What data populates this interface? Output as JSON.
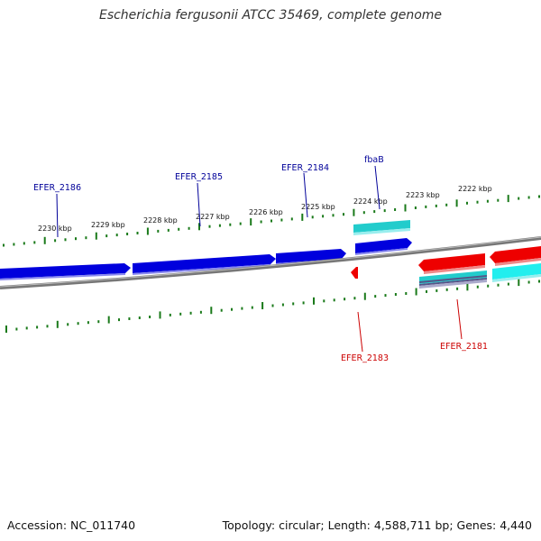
{
  "title": "Escherichia fergusonii ATCC 35469, complete genome",
  "footer": {
    "accession": "Accession: NC_011740",
    "summary": "Topology: circular; Length: 4,588,711 bp; Genes: 4,440"
  },
  "colors": {
    "forward_gene": "#0000dd",
    "reverse_gene": "#ee0000",
    "feature_cyan": "#22cccc",
    "backbone": "#888888",
    "tick": "#1a7a1a",
    "label_forward": "#000099",
    "label_reverse": "#cc0000"
  },
  "ticks": [
    {
      "label": "2230 kbp"
    },
    {
      "label": "2229 kbp"
    },
    {
      "label": "2228 kbp"
    },
    {
      "label": "2227 kbp"
    },
    {
      "label": "2226 kbp"
    },
    {
      "label": "2225 kbp"
    },
    {
      "label": "2224 kbp"
    },
    {
      "label": "2223 kbp"
    },
    {
      "label": "2222 kbp"
    }
  ],
  "gene_labels": {
    "efer_2186": "EFER_2186",
    "efer_2185": "EFER_2185",
    "efer_2184": "EFER_2184",
    "fbab": "fbaB",
    "efer_2183": "EFER_2183",
    "efer_2181": "EFER_2181"
  }
}
